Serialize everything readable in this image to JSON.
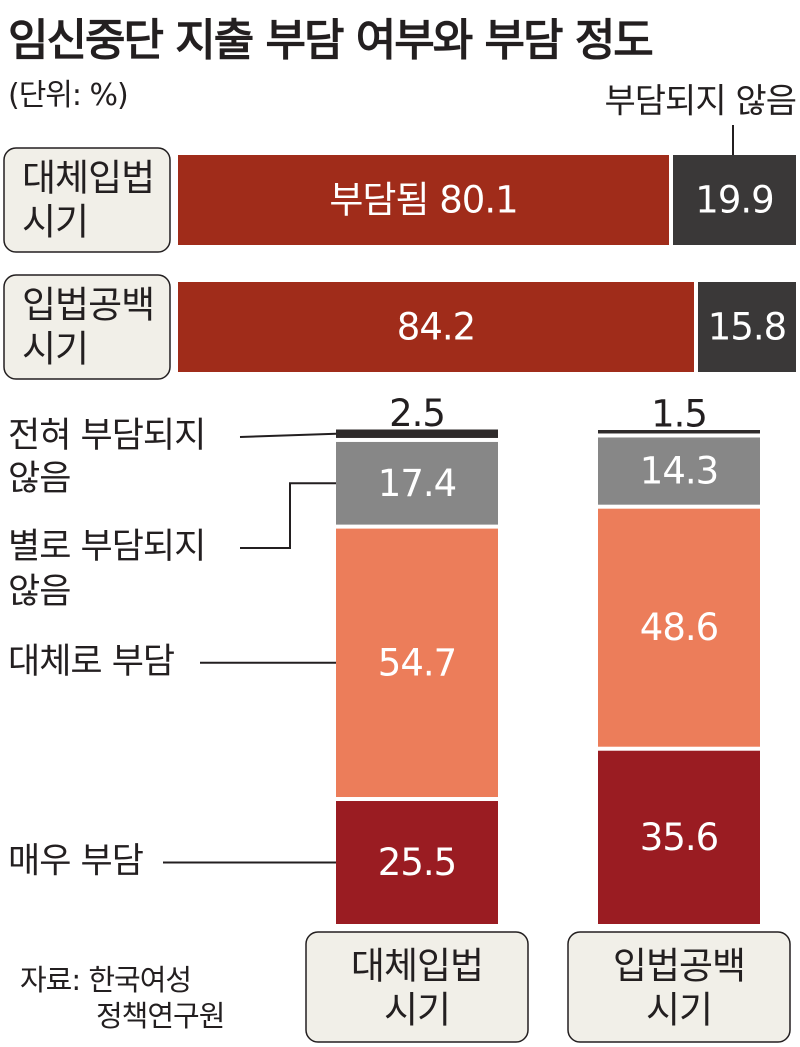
{
  "title": "임신중단 지출 부담 여부와 부담 정도",
  "unit": "(단위: %)",
  "source_lines": [
    "자료: 한국여성",
    "정책연구원"
  ],
  "colors": {
    "burdened": "#a02c1a",
    "not_burdened": "#3a3838",
    "very": "#9a1c22",
    "somewhat": "#ec7d5a",
    "not_much": "#878787",
    "not_at_all": "#2f2b2b",
    "label_box": "#f1efe8"
  },
  "chart_data": [
    {
      "type": "bar",
      "orientation": "horizontal-stacked",
      "categories": [
        "대체입법 시기",
        "입법공백 시기"
      ],
      "series": [
        {
          "name": "부담됨",
          "values": [
            80.1,
            84.2
          ]
        },
        {
          "name": "부담되지 않음",
          "values": [
            19.9,
            15.8
          ]
        }
      ],
      "value_labels": [
        [
          "부담됨  80.1",
          "19.9"
        ],
        [
          "84.2",
          "15.8"
        ]
      ],
      "legend": [
        "부담되지 않음"
      ]
    },
    {
      "type": "bar",
      "orientation": "vertical-stacked",
      "categories": [
        "대체입법 시기",
        "입법공백 시기"
      ],
      "series": [
        {
          "name": "매우 부담",
          "values": [
            25.5,
            35.6
          ]
        },
        {
          "name": "대체로 부담",
          "values": [
            54.7,
            48.6
          ]
        },
        {
          "name": "별로 부담되지 않음",
          "values": [
            17.4,
            14.3
          ]
        },
        {
          "name": "전혀 부담되지 않음",
          "values": [
            2.5,
            1.5
          ]
        }
      ]
    }
  ]
}
